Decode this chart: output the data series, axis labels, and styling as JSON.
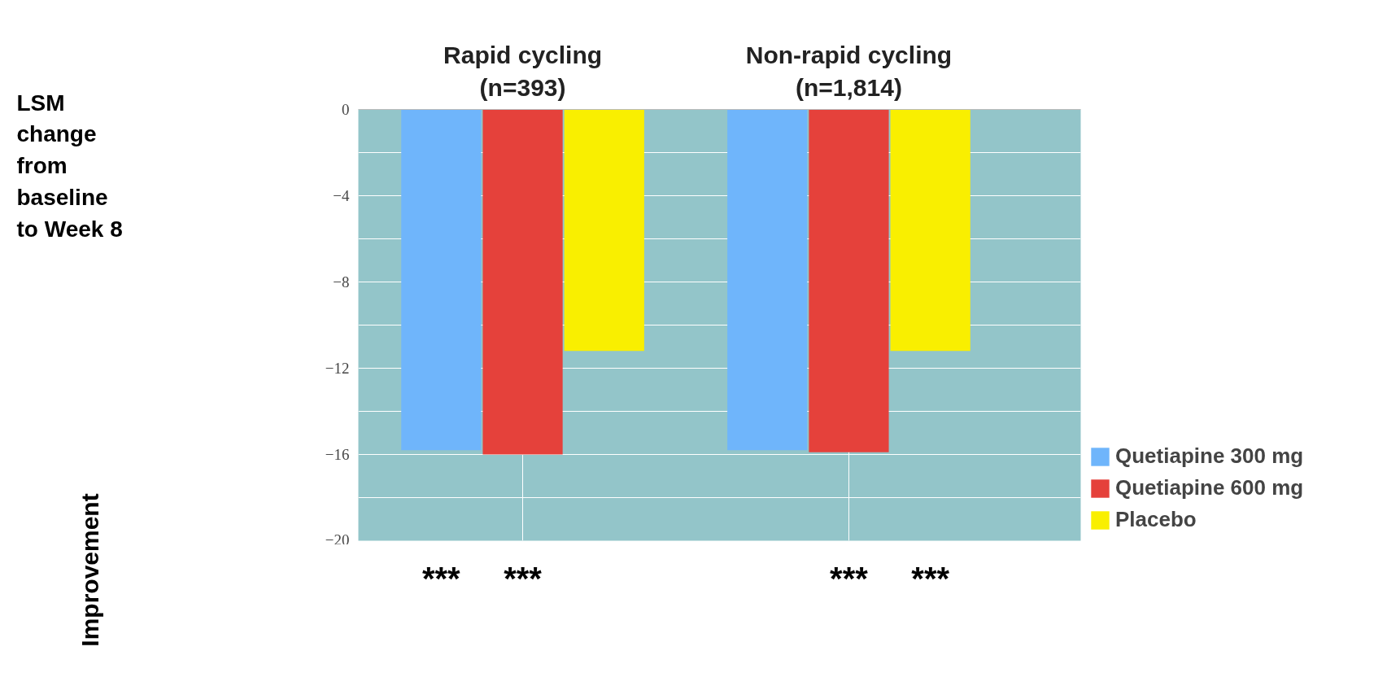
{
  "chart_data": {
    "type": "bar",
    "categories": [
      "Rapid cycling\n(n=393)",
      "Non-rapid cycling\n(n=1,814)"
    ],
    "series": [
      {
        "name": "Quetiapine 300 mg",
        "color": "#6fb5fb",
        "values": [
          -15.8,
          -15.8
        ]
      },
      {
        "name": "Quetiapine 600 mg",
        "color": "#e5413b",
        "values": [
          -16.0,
          -15.9
        ]
      },
      {
        "name": "Placebo",
        "color": "#f9ef00",
        "values": [
          -11.2,
          -11.2
        ]
      }
    ],
    "ylim": [
      -20,
      0
    ],
    "yticks": [
      0,
      -4,
      -8,
      -12,
      -16,
      -20
    ],
    "grid": true,
    "legend": "bottom right",
    "annotations": [
      "LSM\nchange\nfrom\nbaseline\nto Week 8",
      "Improvement",
      "***",
      "***",
      "***",
      "***"
    ]
  }
}
